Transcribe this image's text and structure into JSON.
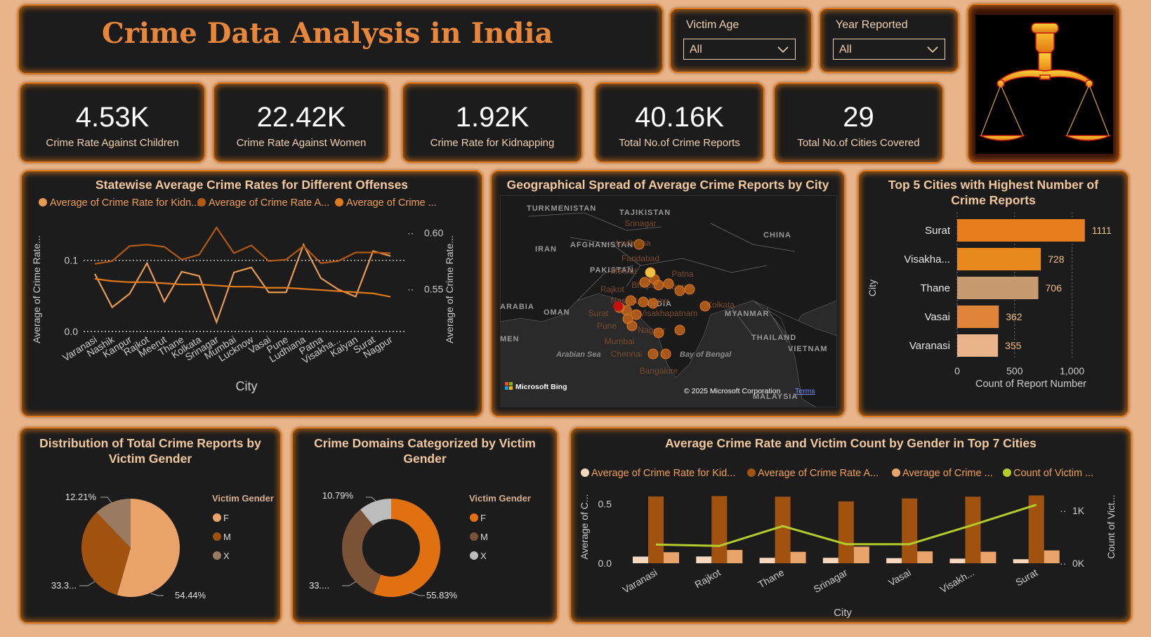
{
  "header": {
    "title": "Crime Data Analysis in India"
  },
  "filters": {
    "victim_age": {
      "label": "Victim Age",
      "value": "All"
    },
    "year_reported": {
      "label": "Year Reported",
      "value": "All"
    }
  },
  "logo": {
    "icon": "justice-fist-scales-icon"
  },
  "kpis": [
    {
      "value": "4.53K",
      "label": "Crime Rate Against Children"
    },
    {
      "value": "22.42K",
      "label": "Crime Rate Against Women"
    },
    {
      "value": "1.92K",
      "label": "Crime Rate for Kidnapping"
    },
    {
      "value": "40.16K",
      "label": "Total No.of Crime Reports"
    },
    {
      "value": "29",
      "label": "Total No.of Cities Covered"
    }
  ],
  "colors": {
    "accent": "#e07a1a",
    "background": "#eab48a",
    "panel": "#1c1c1c"
  },
  "map": {
    "title": "Geographical Spread of Average Crime Reports by City",
    "country_labels": [
      "TURKMENISTAN",
      "TAJIKISTAN",
      "IRAN",
      "AFGHANISTAN",
      "CHINA",
      "PAKISTAN",
      "INDIA",
      "OMAN",
      "MYANMAR",
      "THAILAND",
      "VIETNAM",
      "MALAYSIA",
      "ARABIA",
      "MEN"
    ],
    "sea_labels": [
      "Arabian Sea",
      "Bay of Bengal"
    ],
    "city_labels": [
      "Srinagar",
      "Ludhiana",
      "Faridabad",
      "Meerut",
      "Patna",
      "Rajkot",
      "Bhopal",
      "Kanpur",
      "Nashik",
      "Lucknow",
      "Kolkata",
      "Surat",
      "Visakhapatnam",
      "Pune",
      "Nagpur",
      "Mumbai",
      "Chennai",
      "Bangalore"
    ],
    "attribution": "© 2025 Microsoft Corporation",
    "terms": "Terms",
    "bing": "Microsoft Bing"
  },
  "chart_data": [
    {
      "type": "line",
      "title": "Statewise Average Crime Rates for Different Offenses",
      "xlabel": "City",
      "ylabel_left": "Average of Crime Rate...",
      "ylabel_right": "Average of Crime Rate...",
      "categories": [
        "Varanasi",
        "Nashik",
        "Kanpur",
        "Rajkot",
        "Meerut",
        "Thane",
        "Kolkata",
        "Srinagar",
        "Mumbai",
        "Lucknow",
        "Vasai",
        "Pune",
        "Ludhiana",
        "Patna",
        "Visakha...",
        "Kalyan",
        "Surat",
        "Nagpur"
      ],
      "y_left_ticks": [
        "0.0",
        "0.1"
      ],
      "y_right_ticks": [
        "0.55",
        "0.60"
      ],
      "y_left_range": [
        0,
        0.148
      ],
      "y_right_range": [
        0.512,
        0.606
      ],
      "grid": true,
      "legend_position": "top",
      "series": [
        {
          "name": "Average of Crime Rate for Kidn...",
          "axis": "left",
          "color": "#e89a50",
          "values": [
            0.081,
            0.034,
            0.053,
            0.096,
            0.042,
            0.084,
            0.078,
            0.013,
            0.083,
            0.09,
            0.055,
            0.055,
            0.122,
            0.075,
            0.059,
            0.049,
            0.113,
            0.106
          ]
        },
        {
          "name": "Average of Crime Rate A...",
          "axis": "left",
          "color": "#b35a10",
          "values": [
            0.095,
            0.099,
            0.12,
            0.122,
            0.119,
            0.101,
            0.108,
            0.146,
            0.11,
            0.121,
            0.099,
            0.101,
            0.12,
            0.096,
            0.099,
            0.111,
            0.111,
            0.11
          ]
        },
        {
          "name": "Average of Crime ...",
          "axis": "right",
          "color": "#e07a1a",
          "values": [
            0.559,
            0.557,
            0.556,
            0.556,
            0.555,
            0.554,
            0.554,
            0.553,
            0.552,
            0.552,
            0.551,
            0.551,
            0.55,
            0.549,
            0.548,
            0.547,
            0.546,
            0.543
          ]
        }
      ]
    },
    {
      "type": "bar",
      "orientation": "horizontal",
      "title": "Top 5 Cities with Highest Number of Crime Reports",
      "xlabel": "Count of Report Number",
      "ylabel": "City",
      "categories": [
        "Surat",
        "Visakha...",
        "Thane",
        "Vasai",
        "Varanasi"
      ],
      "values": [
        1111,
        728,
        706,
        362,
        355
      ],
      "value_labels": [
        "1111",
        "728",
        "706",
        "362",
        "355"
      ],
      "colors": [
        "#e87d1e",
        "#e8891e",
        "#c89a70",
        "#e0843a",
        "#eab48a"
      ],
      "xlim": [
        0,
        1100
      ],
      "x_ticks": [
        "0",
        "500",
        "1,000"
      ],
      "x_tick_values": [
        0,
        500,
        1000
      ]
    },
    {
      "type": "pie",
      "title": "Distribution of Total Crime Reports by Victim Gender",
      "legend_title": "Victim Gender",
      "labels": [
        "F",
        "M",
        "X"
      ],
      "values": [
        54.44,
        33.35,
        12.21
      ],
      "display_labels": [
        "54.44%",
        "33.3...",
        "12.21%"
      ],
      "colors": [
        "#eaa46a",
        "#a0520e",
        "#9a7a60"
      ]
    },
    {
      "type": "pie",
      "donut": true,
      "title": "Crime Domains Categorized by Victim Gender",
      "legend_title": "Victim Gender",
      "labels": [
        "F",
        "M",
        "X"
      ],
      "values": [
        55.83,
        33.38,
        10.79
      ],
      "display_labels": [
        "55.83%",
        "33....",
        "10.79%"
      ],
      "colors": [
        "#e07010",
        "#7a5238",
        "#bcbcbc"
      ]
    },
    {
      "type": "bar",
      "combo": "bar-line",
      "title": "Average Crime Rate and Victim Count by Gender in Top 7 Cities",
      "xlabel": "City",
      "ylabel_left": "Average of C...",
      "ylabel_right": "Count of Vict...",
      "categories": [
        "Varanasi",
        "Rajkot",
        "Thane",
        "Srinagar",
        "Vasai",
        "Visakh...",
        "Surat"
      ],
      "y_left_ticks": [
        "0.0",
        "0.5"
      ],
      "y_right_ticks": [
        "0K",
        "1K"
      ],
      "y_left_range": [
        0,
        0.62
      ],
      "y_right_range": [
        0,
        1400
      ],
      "series": [
        {
          "name": "Average of Crime Rate for Kid...",
          "type": "bar",
          "color": "#f5d8bf",
          "values": [
            0.056,
            0.057,
            0.046,
            0.046,
            0.043,
            0.039,
            0.034
          ]
        },
        {
          "name": "Average of Crime Rate A...",
          "type": "bar",
          "color": "#a0520e",
          "values": [
            0.562,
            0.565,
            0.56,
            0.52,
            0.545,
            0.56,
            0.57
          ]
        },
        {
          "name": "Average of Crime ...",
          "type": "bar",
          "color": "#e8a46a",
          "values": [
            0.093,
            0.112,
            0.096,
            0.14,
            0.1,
            0.097,
            0.108
          ]
        },
        {
          "name": "Count of Victim ...",
          "type": "line",
          "axis": "right",
          "color": "#b5cc2a",
          "values": [
            355,
            330,
            706,
            362,
            362,
            728,
            1111
          ]
        }
      ]
    }
  ]
}
